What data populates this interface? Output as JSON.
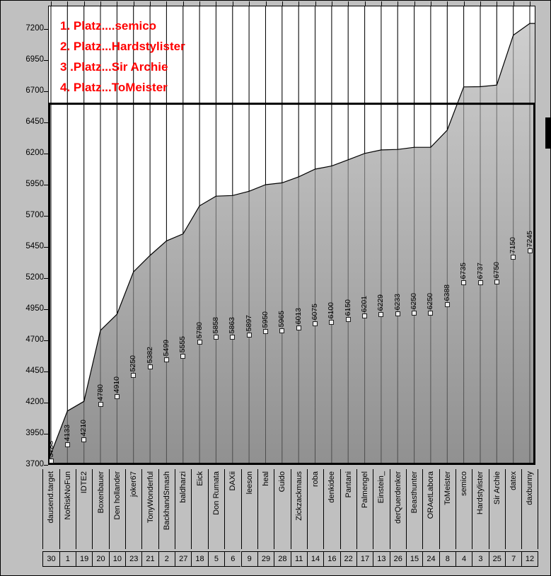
{
  "legend": {
    "color": "#ff0000",
    "lines": [
      "1. Platz....semico",
      "2. Platz...Hardstylister",
      "3 .Platz...Sir Archie",
      "4. Platz...ToMeister"
    ]
  },
  "colors": {
    "background": "#c0c0c0",
    "plot_bg": "#ffffff",
    "area_top": "#c6c6c6",
    "area_bottom": "#7d7d7d",
    "line": "#000000",
    "marker_fill": "#ededed",
    "legend_text": "#ff0000"
  },
  "chart_data": {
    "type": "area",
    "title": "",
    "xlabel": "",
    "ylabel": "",
    "ylim": [
      3700,
      7380
    ],
    "y_ticks": [
      3700,
      3950,
      4200,
      4450,
      4700,
      4950,
      5200,
      5450,
      5700,
      5950,
      6200,
      6450,
      6700,
      6950,
      7200
    ],
    "grid": "vertical-category-lines",
    "legend_position": "none",
    "target_line": 6600,
    "categories": [
      "dausend.target",
      "NoRiskNoFun",
      "IDTE2",
      "Boxenbauer",
      "Den hollander",
      "joker67",
      "TonyWonderful",
      "BackhandSmash",
      "baldharzi",
      "Eick",
      "Don Rumata",
      "DAXii",
      "leeson",
      "heal",
      "Guido",
      "Zickzackmaus",
      "roba",
      "denkidee",
      "Pantani",
      "Palmengel",
      "Einstein_",
      "derQuerdenker",
      "Beasthunter",
      "ORAetLabora",
      "ToMeister",
      "semico",
      "Hardstylister",
      "Sir Archie",
      "datex",
      "daxbunny"
    ],
    "values": [
      3788,
      4133,
      4210,
      4780,
      4910,
      5250,
      5382,
      5499,
      5555,
      5780,
      5858,
      5863,
      5897,
      5950,
      5965,
      6013,
      6075,
      6100,
      6150,
      6201,
      6229,
      6233,
      6250,
      6250,
      6388,
      6735,
      6737,
      6750,
      7150,
      7245
    ],
    "rank_numbers": [
      30,
      1,
      19,
      20,
      10,
      23,
      21,
      2,
      27,
      18,
      5,
      6,
      9,
      29,
      28,
      11,
      14,
      16,
      22,
      17,
      13,
      26,
      15,
      24,
      8,
      4,
      3,
      25,
      7,
      12
    ]
  }
}
